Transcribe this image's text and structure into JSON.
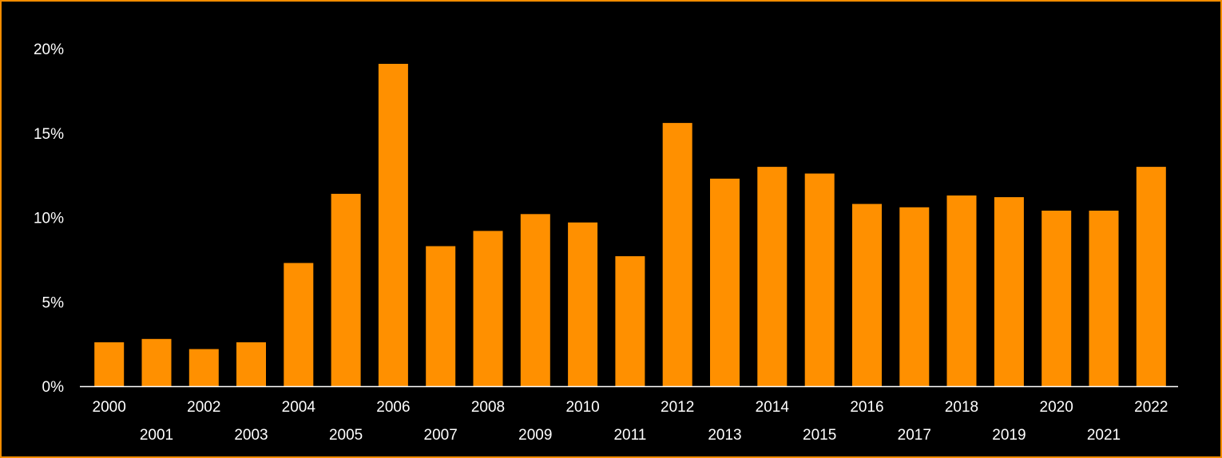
{
  "colors": {
    "background": "#000000",
    "bar": "#ff9000",
    "frame": "#f28c00",
    "axis": "#ffffff",
    "text": "#ffffff"
  },
  "chart_data": {
    "type": "bar",
    "title": "",
    "xlabel": "",
    "ylabel": "",
    "categories": [
      "2000",
      "2001",
      "2002",
      "2003",
      "2004",
      "2005",
      "2006",
      "2007",
      "2008",
      "2009",
      "2010",
      "2011",
      "2012",
      "2013",
      "2014",
      "2015",
      "2016",
      "2017",
      "2018",
      "2019",
      "2020",
      "2021",
      "2022"
    ],
    "values": [
      2.6,
      2.8,
      2.2,
      2.6,
      7.3,
      11.4,
      19.1,
      8.3,
      9.2,
      10.2,
      9.7,
      7.7,
      15.6,
      12.3,
      13.0,
      12.6,
      10.8,
      10.6,
      11.3,
      11.2,
      10.4,
      10.4,
      13.0
    ],
    "ylim": [
      0,
      20
    ],
    "yticks": [
      0,
      5,
      10,
      15,
      20
    ],
    "ytick_labels": [
      "0%",
      "5%",
      "10%",
      "15%",
      "20%"
    ],
    "x_labels_staggered": true,
    "grid": false,
    "legend": "none"
  }
}
